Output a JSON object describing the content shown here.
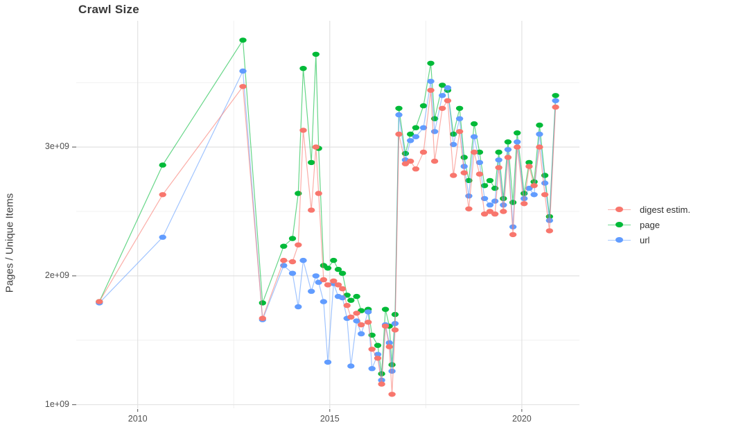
{
  "chart": {
    "title": "Crawl Size",
    "y_axis_title": "Pages / Unique Items"
  },
  "legend": {
    "items": [
      {
        "key": "digest",
        "label": "digest estim.",
        "color": "#F8766D"
      },
      {
        "key": "page",
        "label": "page",
        "color": "#00BA38"
      },
      {
        "key": "url",
        "label": "url",
        "color": "#619CFF"
      }
    ]
  },
  "colors": {
    "digest": "#F8766D",
    "page": "#00BA38",
    "url": "#619CFF",
    "grid_major": "#E2E2E2",
    "grid_minor": "#F0F0F0",
    "tick": "#4f4f4f",
    "axis_text": "#4f4f4f",
    "title_text": "#383838",
    "background": "#ffffff"
  },
  "chart_data": {
    "type": "line",
    "title": "Crawl Size",
    "xlabel": "",
    "ylabel": "Pages / Unique Items",
    "value_unit": "billions (1e9) of pages / unique items",
    "xlim": [
      2008.4,
      2021.5
    ],
    "ylim_billions": [
      0.95,
      3.98
    ],
    "x_ticks": {
      "values": [
        2010,
        2015,
        2020
      ],
      "labels": [
        "2010",
        "2015",
        "2020"
      ],
      "minor": [
        2012.5,
        2017.5
      ]
    },
    "y_ticks": {
      "values": [
        1,
        2,
        3
      ],
      "labels": [
        "1e+09",
        "2e+09",
        "3e+09"
      ],
      "minor": [
        1.5,
        2.5,
        3.5
      ]
    },
    "grid": "major and minor gridlines, light gray on white, no panel border",
    "legend_position": "right",
    "draw_order": [
      "page",
      "url",
      "digest"
    ],
    "series_meta": [
      {
        "key": "digest",
        "name": "digest estim.",
        "color": "#F8766D"
      },
      {
        "key": "page",
        "name": "page",
        "color": "#00BA38"
      },
      {
        "key": "url",
        "name": "url",
        "color": "#619CFF"
      }
    ],
    "points": [
      {
        "x": 2009.0,
        "page": 1.8,
        "url": 1.79,
        "digest": 1.8
      },
      {
        "x": 2010.65,
        "page": 2.86,
        "url": 2.3,
        "digest": 2.63
      },
      {
        "x": 2012.74,
        "page": 3.83,
        "url": 3.59,
        "digest": 3.47
      },
      {
        "x": 2013.25,
        "page": 1.79,
        "url": 1.66,
        "digest": 1.67
      },
      {
        "x": 2013.8,
        "page": 2.23,
        "url": 2.08,
        "digest": 2.12
      },
      {
        "x": 2014.03,
        "page": 2.29,
        "url": 2.02,
        "digest": 2.11
      },
      {
        "x": 2014.18,
        "page": 2.64,
        "url": 1.76,
        "digest": 2.24
      },
      {
        "x": 2014.31,
        "page": 3.61,
        "url": 2.12,
        "digest": 3.13
      },
      {
        "x": 2014.52,
        "page": 2.88,
        "url": 1.88,
        "digest": 2.51
      },
      {
        "x": 2014.64,
        "page": 3.72,
        "url": 2.0,
        "digest": 3.0
      },
      {
        "x": 2014.71,
        "page": 2.99,
        "url": 1.95,
        "digest": 2.64
      },
      {
        "x": 2014.84,
        "page": 2.08,
        "url": 1.8,
        "digest": 1.97
      },
      {
        "x": 2014.95,
        "page": 2.06,
        "url": 1.33,
        "digest": 1.93
      },
      {
        "x": 2015.1,
        "page": 2.12,
        "url": 1.94,
        "digest": 1.96
      },
      {
        "x": 2015.22,
        "page": 2.05,
        "url": 1.84,
        "digest": 1.93
      },
      {
        "x": 2015.33,
        "page": 2.02,
        "url": 1.83,
        "digest": 1.9
      },
      {
        "x": 2015.45,
        "page": 1.85,
        "url": 1.67,
        "digest": 1.77
      },
      {
        "x": 2015.55,
        "page": 1.81,
        "url": 1.3,
        "digest": 1.68
      },
      {
        "x": 2015.7,
        "page": 1.84,
        "url": 1.65,
        "digest": 1.71
      },
      {
        "x": 2015.82,
        "page": 1.73,
        "url": 1.55,
        "digest": 1.62
      },
      {
        "x": 2016.0,
        "page": 1.74,
        "url": 1.72,
        "digest": 1.64
      },
      {
        "x": 2016.1,
        "page": 1.54,
        "url": 1.28,
        "digest": 1.43
      },
      {
        "x": 2016.25,
        "page": 1.46,
        "url": 1.39,
        "digest": 1.36
      },
      {
        "x": 2016.35,
        "page": 1.24,
        "url": 1.19,
        "digest": 1.16
      },
      {
        "x": 2016.45,
        "page": 1.74,
        "url": 1.62,
        "digest": 1.61
      },
      {
        "x": 2016.55,
        "page": 1.61,
        "url": 1.48,
        "digest": 1.45
      },
      {
        "x": 2016.62,
        "page": 1.31,
        "url": 1.26,
        "digest": 1.08
      },
      {
        "x": 2016.7,
        "page": 1.7,
        "url": 1.63,
        "digest": 1.58
      },
      {
        "x": 2016.8,
        "page": 3.3,
        "url": 3.25,
        "digest": 3.1
      },
      {
        "x": 2016.97,
        "page": 2.95,
        "url": 2.9,
        "digest": 2.87
      },
      {
        "x": 2017.1,
        "page": 3.1,
        "url": 3.05,
        "digest": 2.89
      },
      {
        "x": 2017.24,
        "page": 3.15,
        "url": 3.08,
        "digest": 2.83
      },
      {
        "x": 2017.44,
        "page": 3.32,
        "url": 3.15,
        "digest": 2.96
      },
      {
        "x": 2017.63,
        "page": 3.65,
        "url": 3.51,
        "digest": 3.44
      },
      {
        "x": 2017.73,
        "page": 3.22,
        "url": 3.12,
        "digest": 2.89
      },
      {
        "x": 2017.93,
        "page": 3.48,
        "url": 3.4,
        "digest": 3.3
      },
      {
        "x": 2018.07,
        "page": 3.44,
        "url": 3.46,
        "digest": 3.36
      },
      {
        "x": 2018.22,
        "page": 3.1,
        "url": 3.02,
        "digest": 2.78
      },
      {
        "x": 2018.38,
        "page": 3.3,
        "url": 3.22,
        "digest": 3.12
      },
      {
        "x": 2018.5,
        "page": 2.92,
        "url": 2.85,
        "digest": 2.8
      },
      {
        "x": 2018.62,
        "page": 2.74,
        "url": 2.62,
        "digest": 2.52
      },
      {
        "x": 2018.76,
        "page": 3.18,
        "url": 3.08,
        "digest": 2.96
      },
      {
        "x": 2018.9,
        "page": 2.96,
        "url": 2.88,
        "digest": 2.79
      },
      {
        "x": 2019.03,
        "page": 2.7,
        "url": 2.6,
        "digest": 2.48
      },
      {
        "x": 2019.17,
        "page": 2.74,
        "url": 2.55,
        "digest": 2.5
      },
      {
        "x": 2019.3,
        "page": 2.68,
        "url": 2.58,
        "digest": 2.48
      },
      {
        "x": 2019.4,
        "page": 2.96,
        "url": 2.9,
        "digest": 2.84
      },
      {
        "x": 2019.52,
        "page": 2.6,
        "url": 2.55,
        "digest": 2.5
      },
      {
        "x": 2019.64,
        "page": 3.04,
        "url": 2.98,
        "digest": 2.92
      },
      {
        "x": 2019.77,
        "page": 2.57,
        "url": 2.38,
        "digest": 2.32
      },
      {
        "x": 2019.88,
        "page": 3.11,
        "url": 3.04,
        "digest": 3.0
      },
      {
        "x": 2020.06,
        "page": 2.64,
        "url": 2.6,
        "digest": 2.56
      },
      {
        "x": 2020.19,
        "page": 2.88,
        "url": 2.68,
        "digest": 2.85
      },
      {
        "x": 2020.32,
        "page": 2.73,
        "url": 2.63,
        "digest": 2.7
      },
      {
        "x": 2020.46,
        "page": 3.17,
        "url": 3.1,
        "digest": 3.0
      },
      {
        "x": 2020.6,
        "page": 2.78,
        "url": 2.72,
        "digest": 2.63
      },
      {
        "x": 2020.72,
        "page": 2.46,
        "url": 2.43,
        "digest": 2.35
      },
      {
        "x": 2020.88,
        "page": 3.4,
        "url": 3.36,
        "digest": 3.31
      }
    ]
  }
}
